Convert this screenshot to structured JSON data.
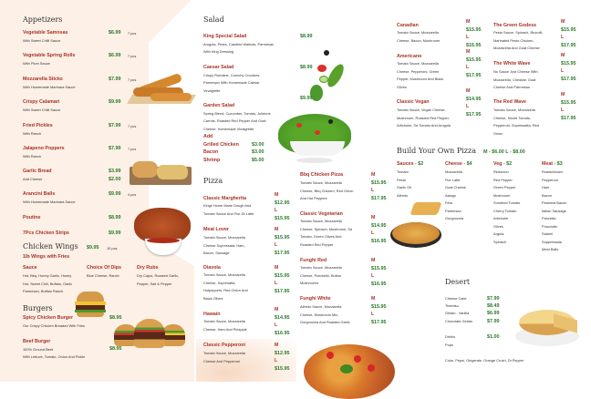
{
  "colors": {
    "item_name": "#a83228",
    "price": "#2a7a2a",
    "panel": "#fdf0e6"
  },
  "appetizers": {
    "title": "Appetizers",
    "items": [
      {
        "name": "Vegetable Samosas",
        "desc": "With Sweet Chilli Sauce",
        "prices": [
          "$6.99"
        ],
        "pcs": "7 pcs"
      },
      {
        "name": "Vegetable Spring Rolls",
        "desc": "With Plum Sauce",
        "prices": [
          "$6.99"
        ],
        "pcs": "7 pcs"
      },
      {
        "name": "Mozzarella Sticks",
        "desc": "With Homemade Marinara Sauce",
        "prices": [
          "$7.99"
        ],
        "pcs": "7 pcs"
      },
      {
        "name": "Crispy Calamari",
        "desc": "With Sweet Chilli Sauce",
        "prices": [
          "$9.99"
        ],
        "pcs": ""
      },
      {
        "name": "Fried Pickles",
        "desc": "With Ranch",
        "prices": [
          "$7.99"
        ],
        "pcs": "7 pcs"
      },
      {
        "name": "Jalapeno Poppers",
        "desc": "With Ranch",
        "prices": [
          "$7.99"
        ],
        "pcs": "7 pcs"
      },
      {
        "name": "Garlic Bread",
        "desc": "Add Cheese",
        "prices": [
          "$3.99",
          "$2.00"
        ],
        "pcs": ""
      },
      {
        "name": "Arancini Balls",
        "desc": "With Homemade Marinara Sauce",
        "prices": [
          "$9.99"
        ],
        "pcs": "4 pcs"
      },
      {
        "name": "Poutine",
        "desc": "",
        "prices": [
          "$8.99"
        ],
        "pcs": ""
      },
      {
        "name": "7Pcs Chicken Strips",
        "desc": "",
        "prices": [
          "$9.99"
        ],
        "pcs": ""
      }
    ]
  },
  "wings": {
    "title": "Chicken Wings",
    "price": "$9.95",
    "pcs": "10 pcs",
    "subtitle": "1lb Wings with Fries",
    "columns": [
      {
        "title": "Sauce",
        "lines": [
          "Hot, Bbq, Honey Garlic, Honey",
          "Hot, Sweet Chili, Buffalo, Garlic",
          "Parmesan,  Buffalo Ranch"
        ]
      },
      {
        "title": "Choice Of Dips",
        "lines": [
          "Blue Cheese, Ranch"
        ]
      },
      {
        "title": "Dry Rubs",
        "lines": [
          "Dry Cajun, Roasted Garlic,",
          "Pepper, Salt & Pepper"
        ]
      }
    ]
  },
  "burgers": {
    "title": "Burgers",
    "items": [
      {
        "name": "Spicy Chicken Burger",
        "desc": [
          "Our Crispy Chicken Breaded With Fries"
        ],
        "price": "$8.95"
      },
      {
        "name": "Beef Burger",
        "desc": [
          "100% Ground Beef",
          "With Lettuce, Tomato, Onion And Pickle"
        ],
        "price": "$8.95"
      }
    ]
  },
  "salad": {
    "title": "Salad",
    "items": [
      {
        "name": "King Special Salad",
        "desc": [
          "Arugula, Pears, Candied Walnuts, Parmesan",
          "With King Dressing"
        ],
        "price": "$8.99"
      },
      {
        "name": "Caesar Salad",
        "desc": [
          "Crispy Romaine, Crunchy Croutons,",
          "Parmesan With Homemade Caesar",
          "Vinaigrette"
        ],
        "price": "$8.99"
      },
      {
        "name": "Garden Salad",
        "desc": [
          "Spring Blend, Cucumber, Tomato, Julienne",
          "Carrots, Roasted Red Pepper And Goat",
          "Cheese, Homemade Vinaigrette"
        ],
        "price": "$9.99"
      }
    ],
    "add_label": "Add",
    "addons": [
      {
        "name": "Grilled Chicken",
        "note": "",
        "price": "$3.00"
      },
      {
        "name": "Bacon",
        "note": "",
        "price": "$3.00"
      },
      {
        "name": "Shrimp",
        "note": " (3pcs)",
        "price": "$5.00"
      }
    ]
  },
  "pizza": {
    "title": "Pizza",
    "items": [
      {
        "name": "Classic Margherita",
        "desc": [
          "Kings Home Made Dough And",
          "Tomato Sauce And Fior-Di-Latte"
        ],
        "sizes": [
          [
            "M",
            "$12.95"
          ],
          [
            "L",
            "$15.95"
          ]
        ]
      },
      {
        "name": "Meat Lover",
        "desc": [
          "Tomato Sauce, Mozzarella",
          "Cheese Sopressata, Ham,",
          "Bacon, Sausage"
        ],
        "sizes": [
          [
            "M",
            "$15.95"
          ],
          [
            "L",
            "$17.95"
          ]
        ]
      },
      {
        "name": "Diavola",
        "desc": [
          "Tomato Sauce, Mozzarella",
          "Cheese, Sopresatta,",
          "Hotpeppers, Red Onion And",
          "Black Olives"
        ],
        "sizes": [
          [
            "M",
            "$15.95"
          ],
          [
            "L",
            "$17.95"
          ]
        ]
      },
      {
        "name": "Hawain",
        "desc": [
          "Tomato Sauce, Mozzarella",
          "Cheese, Ham And Pinapple"
        ],
        "sizes": [
          [
            "M",
            "$14.95"
          ],
          [
            "L",
            "$16.95"
          ]
        ]
      },
      {
        "name": "Classic Pepperoni",
        "desc": [
          "Tomato Sauce, Mozzarella",
          "Cheese And Pepperoni"
        ],
        "sizes": [
          [
            "M",
            "$12.95"
          ],
          [
            "L",
            "$15.95"
          ]
        ]
      },
      {
        "name": "Bbq Chicken Pizza",
        "desc": [
          "Tomato Sauce, Mozzarella",
          "Cheese, Bbq Chicken, Red Onion",
          "And Hot Peppers"
        ],
        "sizes": [
          [
            "M",
            "$15.95"
          ],
          [
            "L",
            "$17.95"
          ]
        ]
      },
      {
        "name": "Classic Vegetarian",
        "desc": [
          "Tomato Sauce, Mozzarella",
          "Cheese, Spinach, Mushroom, Sd",
          "Tomato, Green Olives And",
          "Roasted Red Pepper"
        ],
        "sizes": [
          [
            "M",
            "$14.95"
          ],
          [
            "L",
            "$16.95"
          ]
        ]
      },
      {
        "name": "Funghi Red",
        "desc": [
          "Tomato Sauce, Mozzarella",
          "Cheese, Potobello, Button",
          "Mushrooms"
        ],
        "sizes": [
          [
            "M",
            "$15.95"
          ],
          [
            "L",
            "$16.95"
          ]
        ]
      },
      {
        "name": "Funghi White",
        "desc": [
          "Alfredo Sauce, Mozzarella",
          "Cheese, Mushroom Mix,",
          "Gorgonzola And Roasted Garlic"
        ],
        "sizes": [
          [
            "M",
            "$15.95"
          ],
          [
            "L",
            "$17.95"
          ]
        ]
      },
      {
        "name": "Canadian",
        "desc": [
          "Tomato Sauce, Mozzarella",
          "Cheese, Bacon, Mushroom"
        ],
        "sizes": [
          [
            "M",
            "$15.95"
          ],
          [
            "L",
            "$16.95"
          ]
        ]
      },
      {
        "name": "Americano",
        "desc": [
          "Tomato Sauce, Mozzarella",
          "Cheese, Pepperoni, Green",
          "Pepper, Mushroom And Black",
          "Olives"
        ],
        "sizes": [
          [
            "M",
            "$15.95"
          ],
          [
            "L",
            "$17.95"
          ]
        ]
      },
      {
        "name": "Classic Vegan",
        "desc": [
          "Tomato Sauce, Vegan Cheese,",
          "Mushroom, Roasted Red Pepper,",
          "Artichoke, Sd Tomato And Arugula"
        ],
        "sizes": [
          [
            "M",
            "$14.95"
          ],
          [
            "L",
            "$17.95"
          ]
        ]
      },
      {
        "name": "The Green Godess",
        "desc": [
          "Pesto Sauce, Spinach, Brocolli,",
          "Marinated Pesto Chicken,",
          "Mozzarella And Goat Cheese"
        ],
        "sizes": [
          [
            "M",
            "$15.95"
          ],
          [
            "L",
            "$17.95"
          ]
        ]
      },
      {
        "name": "The White Wave",
        "desc": [
          "No Sauce Just Cheese With",
          "Mozzarella, Cheddar, Goat",
          "Cheese And Parmesan"
        ],
        "sizes": [
          [
            "M",
            "$15.95"
          ],
          [
            "L",
            "$17.95"
          ]
        ]
      },
      {
        "name": "The Red Wave",
        "desc": [
          "Tomato Sauce, Mozzarella",
          "Cheese, Sliced Tomato,",
          "Pepperoni, Sopressatta, Red",
          "Onion"
        ],
        "sizes": [
          [
            "M",
            "$15.95"
          ],
          [
            "L",
            "$17.95"
          ]
        ]
      }
    ]
  },
  "build": {
    "title": "Build Your Own Pizza",
    "price": "M - $6.00  L - $8.00",
    "columns": [
      {
        "title": "Sauces",
        "price": " - $2",
        "items": [
          "Tomato",
          "Pesto",
          "Garlic Oil",
          "Alfredo"
        ]
      },
      {
        "title": "Cheese",
        "price": " - $4",
        "items": [
          "Mozzarella",
          "Fior Latte",
          "Goat Cheese",
          "Asiago",
          "Feta",
          "Parmesan",
          "Gorgonzola"
        ]
      },
      {
        "title": "Veg",
        "price": "  - $2",
        "items": [
          "Redonion",
          "Red Pepper",
          "Green Pepper",
          "Mushroom",
          "Sundried Tomato",
          "Cherry Tomato",
          "Artichoke",
          "Olives",
          "Argula",
          "Spinach"
        ]
      },
      {
        "title": "Meat",
        "price": "  - $3",
        "items": [
          "Roastchicken",
          "Pepperoni",
          "Ham",
          "Bacon",
          "Peameal Bacon",
          "Italian Sausage",
          "Pancetta",
          "Prosciutto",
          "Salami",
          "Soppressata",
          "Meat Balls"
        ]
      }
    ]
  },
  "desert": {
    "title": "Desert",
    "items": [
      {
        "name": "Cheese Cake",
        "price": "$7.99"
      },
      {
        "name": "Tiramisu",
        "price": "$8.49"
      },
      {
        "name": "Gelato - Vanilla",
        "price": "$6.99"
      },
      {
        "name": "Chocolate Gelato",
        "price": "$7.99"
      }
    ],
    "drinks_label": "Drinks",
    "drinks_price": "$1.00",
    "pops_label": "Pops",
    "pops_list": "Coke, Pepsi, Gingerale, Orange Crush, Dr.Pepper"
  }
}
